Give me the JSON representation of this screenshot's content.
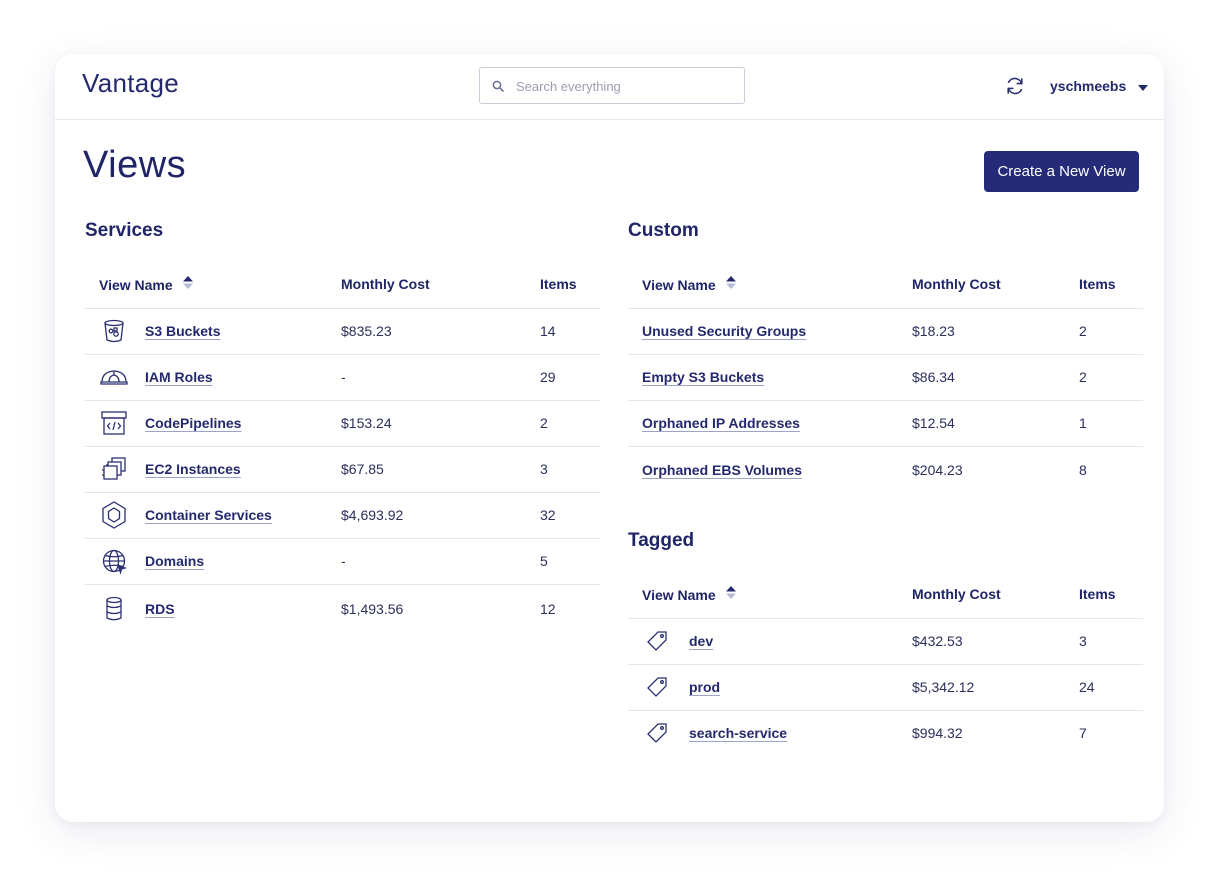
{
  "app": {
    "name": "Vantage"
  },
  "search": {
    "placeholder": "Search everything"
  },
  "user": {
    "name": "yschmeebs"
  },
  "page": {
    "title": "Views",
    "new_view_button": "Create a New View"
  },
  "columns": {
    "name": "View Name",
    "cost": "Monthly Cost",
    "items": "Items"
  },
  "services": {
    "title": "Services",
    "rows": [
      {
        "icon": "bucket-icon",
        "name": "S3 Buckets",
        "cost": "$835.23",
        "items": "14"
      },
      {
        "icon": "hard-hat-icon",
        "name": "IAM Roles",
        "cost": "-",
        "items": "29"
      },
      {
        "icon": "code-box-icon",
        "name": "CodePipelines",
        "cost": "$153.24",
        "items": "2"
      },
      {
        "icon": "cpu-stack-icon",
        "name": "EC2 Instances",
        "cost": "$67.85",
        "items": "3"
      },
      {
        "icon": "hexagon-icon",
        "name": "Container Services",
        "cost": "$4,693.92",
        "items": "32"
      },
      {
        "icon": "globe-icon",
        "name": "Domains",
        "cost": "-",
        "items": "5"
      },
      {
        "icon": "database-icon",
        "name": "RDS",
        "cost": "$1,493.56",
        "items": "12"
      }
    ]
  },
  "custom": {
    "title": "Custom",
    "rows": [
      {
        "name": "Unused Security Groups",
        "cost": "$18.23",
        "items": "2"
      },
      {
        "name": "Empty S3 Buckets",
        "cost": "$86.34",
        "items": "2"
      },
      {
        "name": "Orphaned IP Addresses",
        "cost": "$12.54",
        "items": "1"
      },
      {
        "name": "Orphaned EBS Volumes",
        "cost": "$204.23",
        "items": "8"
      }
    ]
  },
  "tagged": {
    "title": "Tagged",
    "rows": [
      {
        "icon": "tag-icon",
        "name": "dev",
        "cost": "$432.53",
        "items": "3"
      },
      {
        "icon": "tag-icon",
        "name": "prod",
        "cost": "$5,342.12",
        "items": "24"
      },
      {
        "icon": "tag-icon",
        "name": "search-service",
        "cost": "$994.32",
        "items": "7"
      }
    ]
  },
  "colors": {
    "primary": "#252b78",
    "text": "#1f2566",
    "border": "#e4e5ec"
  }
}
